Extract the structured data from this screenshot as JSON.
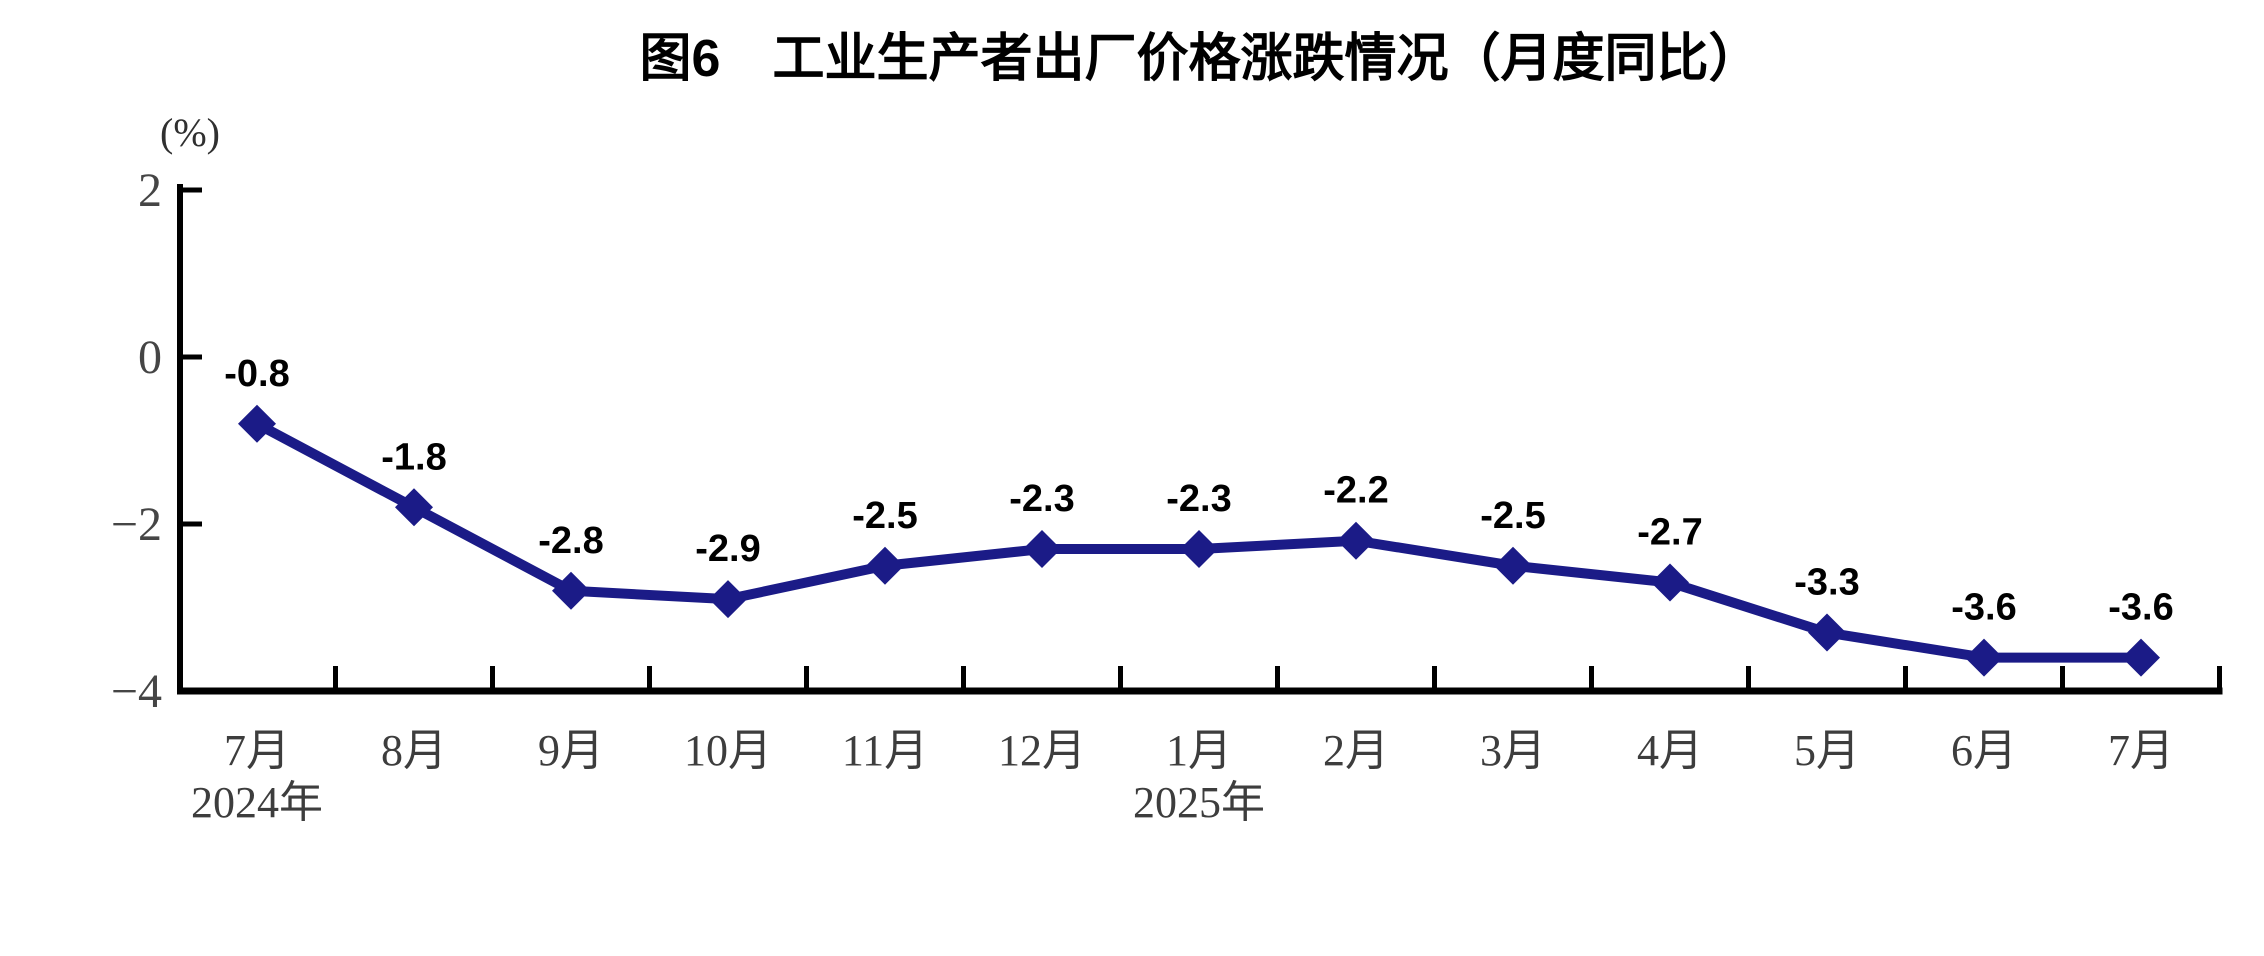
{
  "chart_data": {
    "type": "line",
    "title": "图6　工业生产者出厂价格涨跌情况（月度同比）",
    "ylabel": "(%)",
    "categories": [
      "7月",
      "8月",
      "9月",
      "10月",
      "11月",
      "12月",
      "1月",
      "2月",
      "3月",
      "4月",
      "5月",
      "6月",
      "7月"
    ],
    "year_markers": [
      {
        "index": 0,
        "label": "2024年"
      },
      {
        "index": 6,
        "label": "2025年"
      }
    ],
    "values": [
      -0.8,
      -1.8,
      -2.8,
      -2.9,
      -2.5,
      -2.3,
      -2.3,
      -2.2,
      -2.5,
      -2.7,
      -3.3,
      -3.6,
      -3.6
    ],
    "point_labels": [
      "-0.8",
      "-1.8",
      "-2.8",
      "-2.9",
      "-2.5",
      "-2.3",
      "-2.3",
      "-2.2",
      "-2.5",
      "-2.7",
      "-3.3",
      "-3.6",
      "-3.6"
    ],
    "ylim": [
      -4,
      2
    ],
    "yticks": [
      2,
      0,
      -2,
      -4
    ],
    "ytick_labels": [
      "2",
      "0",
      "−2",
      "−4"
    ],
    "grid": false,
    "legend": null,
    "marker": "diamond",
    "line_color": "#1b1b87",
    "marker_color": "#1b1b87",
    "label_color": "#000000",
    "axis_color": "#000000"
  }
}
